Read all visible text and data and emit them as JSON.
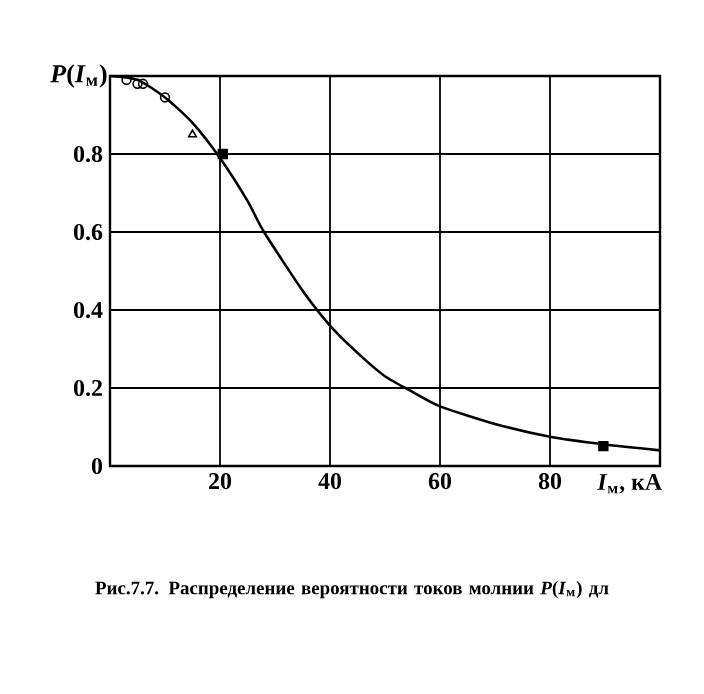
{
  "chart_data": {
    "type": "line",
    "title": "Рис.7.7. Распределение вероятности токов молнии *P*(*I*$_{м}$) дл",
    "xlabel": "*I*$_{м}$, кА",
    "ylabel": "*P*(*I*$_{м}$)",
    "xlim": [
      0,
      100
    ],
    "ylim": [
      0,
      1
    ],
    "xticks": [
      20,
      40,
      60,
      80
    ],
    "yticks": [
      0,
      0.2,
      0.4,
      0.6,
      0.8,
      {
        "value": 1,
        "label": null
      }
    ],
    "grid": true,
    "series": [
      {
        "color": "#000000",
        "marker": "none",
        "x": [
          0,
          5,
          10,
          15,
          20,
          25,
          28,
          35,
          40,
          45,
          50,
          55,
          60,
          70,
          80,
          90,
          100
        ],
        "values": [
          1.0,
          0.99,
          0.945,
          0.88,
          0.79,
          0.68,
          0.6,
          0.45,
          0.36,
          0.29,
          0.23,
          0.19,
          0.153,
          0.108,
          0.075,
          0.055,
          0.04
        ]
      },
      {
        "type": "scatter",
        "color": "#000000",
        "marker": "circle",
        "x": [
          3,
          5,
          6,
          10
        ],
        "values": [
          0.99,
          0.98,
          0.98,
          0.945
        ]
      },
      {
        "type": "scatter",
        "color": "#000000",
        "marker": "triangle",
        "x": [
          15
        ],
        "values": [
          0.85
        ]
      },
      {
        "type": "scatter",
        "color": "#000000",
        "marker": "square",
        "x": [
          20.5,
          89.7
        ],
        "values": [
          0.8,
          0.051
        ]
      }
    ]
  }
}
